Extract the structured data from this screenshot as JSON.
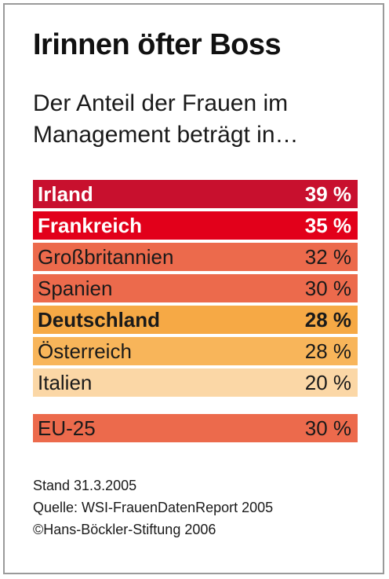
{
  "title": "Irinnen öfter Boss",
  "subtitle": "Der Anteil der Frauen im Management beträgt in…",
  "chart_data": {
    "type": "table",
    "title": "Irinnen öfter Boss",
    "subtitle": "Der Anteil der Frauen im Management beträgt in…",
    "unit": "%",
    "categories": [
      "Irland",
      "Frankreich",
      "Großbritannien",
      "Spanien",
      "Deutschland",
      "Österreich",
      "Italien",
      "EU-25"
    ],
    "values": [
      39,
      35,
      32,
      30,
      28,
      28,
      20,
      30
    ],
    "value_labels": [
      "39 %",
      "35 %",
      "32 %",
      "30 %",
      "28 %",
      "28 %",
      "20 %",
      "30 %"
    ],
    "row_colors": [
      "#c8102e",
      "#e2001a",
      "#ec6a4c",
      "#ec6a4c",
      "#f6a945",
      "#f8b55a",
      "#fbd7a6",
      "#ec6a4c"
    ],
    "bold_rows": [
      true,
      true,
      false,
      false,
      true,
      false,
      false,
      false
    ]
  },
  "footer": {
    "stand": "Stand 31.3.2005",
    "quelle": "Quelle: WSI-FrauenDatenReport 2005",
    "copyright": "©Hans-Böckler-Stiftung 2006"
  }
}
